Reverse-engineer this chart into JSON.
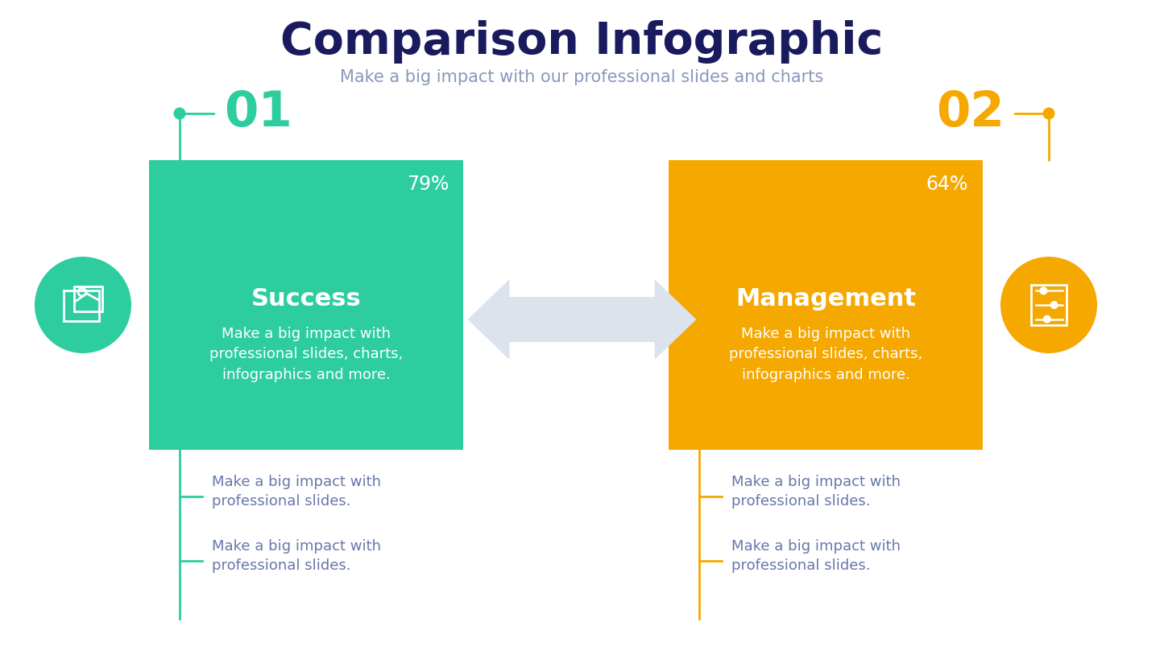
{
  "title": "Comparison Infographic",
  "subtitle": "Make a big impact with our professional slides and charts",
  "title_color": "#1a1a5e",
  "subtitle_color": "#8899bb",
  "bg_color": "#ffffff",
  "left": {
    "number": "01",
    "number_color": "#2dcda0",
    "percent": "79%",
    "box_color": "#2dcda0",
    "heading": "Success",
    "body": "Make a big impact with\nprofessional slides, charts,\ninfographics and more.",
    "bullet1": "Make a big impact with\nprofessional slides.",
    "bullet2": "Make a big impact with\nprofessional slides.",
    "circle_color": "#2dcda0",
    "line_color": "#2dcda0"
  },
  "right": {
    "number": "02",
    "number_color": "#f5a800",
    "percent": "64%",
    "box_color": "#f5a800",
    "heading": "Management",
    "body": "Make a big impact with\nprofessional slides, charts,\ninfographics and more.",
    "bullet1": "Make a big impact with\nprofessional slides.",
    "bullet2": "Make a big impact with\nprofessional slides.",
    "circle_color": "#f5a800",
    "line_color": "#f5a800"
  },
  "arrow_color": "#dce3ed",
  "bullet_text_color": "#6677aa"
}
